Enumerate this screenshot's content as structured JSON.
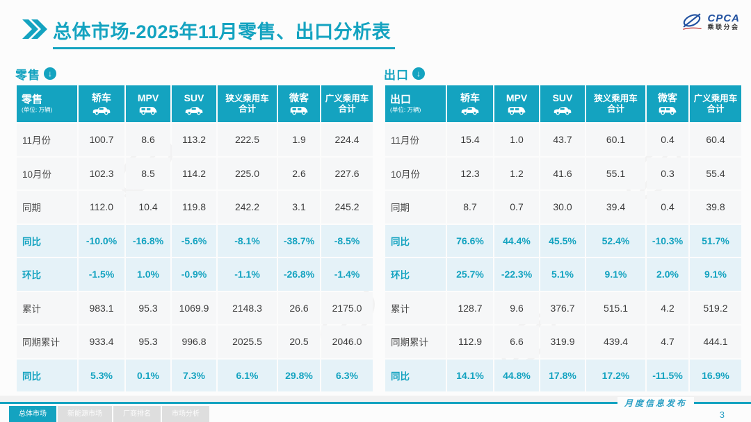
{
  "title": {
    "text": "总体市场-2025年11月零售、出口分析表"
  },
  "logo": {
    "text": "CPCA",
    "subtext": "乘联分会"
  },
  "colors": {
    "accent": "#14a3c0",
    "highlight_bg": "#e5f2f8",
    "row_bg": "#f6f7f8"
  },
  "tables": [
    {
      "section_label": "零售",
      "corner": {
        "label": "零售",
        "unit": "(单位: 万辆)"
      },
      "columns": [
        {
          "label": "轿车",
          "label2": "",
          "icon": "sedan-icon"
        },
        {
          "label": "MPV",
          "label2": "",
          "icon": "mpv-icon"
        },
        {
          "label": "SUV",
          "label2": "",
          "icon": "suv-icon"
        },
        {
          "label": "狭义乘用车",
          "label2": "合计",
          "icon": ""
        },
        {
          "label": "微客",
          "label2": "",
          "icon": "microvan-icon"
        },
        {
          "label": "广义乘用车",
          "label2": "合计",
          "icon": ""
        }
      ],
      "rows": [
        {
          "label": "11月份",
          "highlight": false,
          "values": [
            "100.7",
            "8.6",
            "113.2",
            "222.5",
            "1.9",
            "224.4"
          ]
        },
        {
          "label": "10月份",
          "highlight": false,
          "values": [
            "102.3",
            "8.5",
            "114.2",
            "225.0",
            "2.6",
            "227.6"
          ]
        },
        {
          "label": "同期",
          "highlight": false,
          "values": [
            "112.0",
            "10.4",
            "119.8",
            "242.2",
            "3.1",
            "245.2"
          ]
        },
        {
          "label": "同比",
          "highlight": true,
          "values": [
            "-10.0%",
            "-16.8%",
            "-5.6%",
            "-8.1%",
            "-38.7%",
            "-8.5%"
          ]
        },
        {
          "label": "环比",
          "highlight": true,
          "values": [
            "-1.5%",
            "1.0%",
            "-0.9%",
            "-1.1%",
            "-26.8%",
            "-1.4%"
          ]
        },
        {
          "label": "累计",
          "highlight": false,
          "values": [
            "983.1",
            "95.3",
            "1069.9",
            "2148.3",
            "26.6",
            "2175.0"
          ]
        },
        {
          "label": "同期累计",
          "highlight": false,
          "values": [
            "933.4",
            "95.3",
            "996.8",
            "2025.5",
            "20.5",
            "2046.0"
          ]
        },
        {
          "label": "同比",
          "highlight": true,
          "values": [
            "5.3%",
            "0.1%",
            "7.3%",
            "6.1%",
            "29.8%",
            "6.3%"
          ]
        }
      ]
    },
    {
      "section_label": "出口",
      "corner": {
        "label": "出口",
        "unit": "(单位: 万辆)"
      },
      "columns": [
        {
          "label": "轿车",
          "label2": "",
          "icon": "sedan-icon"
        },
        {
          "label": "MPV",
          "label2": "",
          "icon": "mpv-icon"
        },
        {
          "label": "SUV",
          "label2": "",
          "icon": "suv-icon"
        },
        {
          "label": "狭义乘用车",
          "label2": "合计",
          "icon": ""
        },
        {
          "label": "微客",
          "label2": "",
          "icon": "microvan-icon"
        },
        {
          "label": "广义乘用车",
          "label2": "合计",
          "icon": ""
        }
      ],
      "rows": [
        {
          "label": "11月份",
          "highlight": false,
          "values": [
            "15.4",
            "1.0",
            "43.7",
            "60.1",
            "0.4",
            "60.4"
          ]
        },
        {
          "label": "10月份",
          "highlight": false,
          "values": [
            "12.3",
            "1.2",
            "41.6",
            "55.1",
            "0.3",
            "55.4"
          ]
        },
        {
          "label": "同期",
          "highlight": false,
          "values": [
            "8.7",
            "0.7",
            "30.0",
            "39.4",
            "0.4",
            "39.8"
          ]
        },
        {
          "label": "同比",
          "highlight": true,
          "values": [
            "76.6%",
            "44.4%",
            "45.5%",
            "52.4%",
            "-10.3%",
            "51.7%"
          ]
        },
        {
          "label": "环比",
          "highlight": true,
          "values": [
            "25.7%",
            "-22.3%",
            "5.1%",
            "9.1%",
            "2.0%",
            "9.1%"
          ]
        },
        {
          "label": "累计",
          "highlight": false,
          "values": [
            "128.7",
            "9.6",
            "376.7",
            "515.1",
            "4.2",
            "519.2"
          ]
        },
        {
          "label": "同期累计",
          "highlight": false,
          "values": [
            "112.9",
            "6.6",
            "319.9",
            "439.4",
            "4.7",
            "444.1"
          ]
        },
        {
          "label": "同比",
          "highlight": true,
          "values": [
            "14.1%",
            "44.8%",
            "17.8%",
            "17.2%",
            "-11.5%",
            "16.9%"
          ]
        }
      ]
    }
  ],
  "footer": {
    "tabs": [
      {
        "label": "总体市场",
        "active": true
      },
      {
        "label": "新能源市场",
        "active": false
      },
      {
        "label": "厂商排名",
        "active": false
      },
      {
        "label": "市场分析",
        "active": false
      }
    ],
    "publication": "月度信息发布",
    "page": "3"
  }
}
